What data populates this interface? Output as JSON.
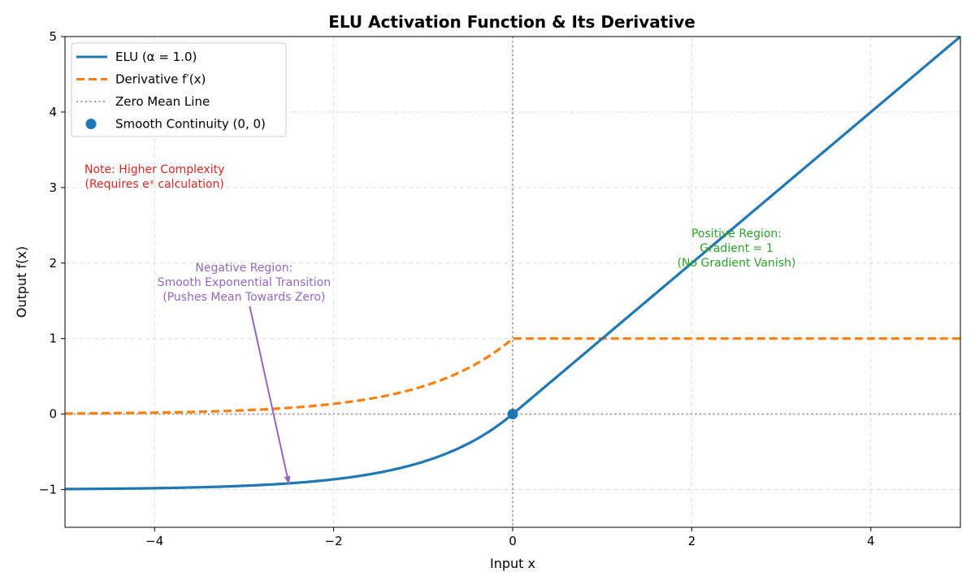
{
  "chart_data": {
    "type": "line",
    "title": "ELU Activation Function & Its Derivative",
    "xlabel": "Input x",
    "ylabel": "Output f(x)",
    "xlim": [
      -5,
      5
    ],
    "ylim": [
      -1.5,
      5
    ],
    "xticks": [
      -4,
      -2,
      0,
      2,
      4
    ],
    "yticks": [
      -1,
      0,
      1,
      2,
      3,
      4,
      5
    ],
    "xtick_labels": [
      "−4",
      "−2",
      "0",
      "2",
      "4"
    ],
    "ytick_labels": [
      "−1",
      "0",
      "1",
      "2",
      "3",
      "4",
      "5"
    ],
    "grid": true,
    "alpha": 1.0,
    "series": [
      {
        "name": "ELU (α = 1.0)",
        "color": "#1f77b4",
        "style": "solid",
        "kind": "elu"
      },
      {
        "name": "Derivative f′(x)",
        "color": "#ff7f0e",
        "style": "dashed",
        "kind": "elu_derivative"
      },
      {
        "name": "Zero Mean Line",
        "color": "#a0a0a0",
        "style": "dotted",
        "kind": "zero_line"
      }
    ],
    "points": [
      {
        "name": "Smooth Continuity (0, 0)",
        "x": 0,
        "y": 0,
        "color": "#1f77b4"
      }
    ],
    "legend": {
      "position": "top-left",
      "entries": [
        "ELU (α = 1.0)",
        "Derivative f′(x)",
        "Zero Mean Line",
        "Smooth Continuity (0, 0)"
      ]
    },
    "annotations": [
      {
        "id": "note",
        "lines": [
          "Note: Higher Complexity",
          "(Requires eˣ calculation)"
        ],
        "x": -4.0,
        "y": 3.15,
        "color": "#d62728"
      },
      {
        "id": "positive",
        "lines": [
          "Positive Region:",
          "Gradient = 1",
          "(No Gradient Vanish)"
        ],
        "x": 2.5,
        "y": 2.2,
        "color": "#2ca02c"
      },
      {
        "id": "negative",
        "lines": [
          "Negative Region:",
          "Smooth Exponential Transition",
          "(Pushes Mean Towards Zero)"
        ],
        "x": -3.0,
        "y": 1.75,
        "color": "#9467bd",
        "arrow_to": [
          -2.5,
          -0.92
        ]
      }
    ]
  }
}
